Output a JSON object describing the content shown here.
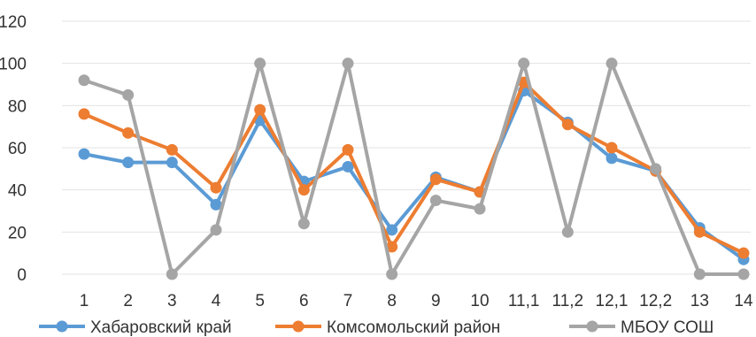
{
  "chart_data": {
    "type": "line",
    "title": "",
    "xlabel": "",
    "ylabel": "",
    "ylim": [
      0,
      120
    ],
    "yticks": [
      0,
      20,
      40,
      60,
      80,
      100,
      120
    ],
    "categories": [
      "1",
      "2",
      "3",
      "4",
      "5",
      "6",
      "7",
      "8",
      "9",
      "10",
      "11,1",
      "11,2",
      "12,1",
      "12,2",
      "13",
      "14"
    ],
    "grid": true,
    "legend": "bottom",
    "series": [
      {
        "name": "Хабаровский край",
        "color": "#5b9bd5",
        "values": [
          57,
          53,
          53,
          33,
          73,
          44,
          51,
          21,
          46,
          39,
          87,
          72,
          55,
          49,
          22,
          7
        ]
      },
      {
        "name": "Комсомольский район",
        "color": "#ed7d31",
        "values": [
          76,
          67,
          59,
          41,
          78,
          40,
          59,
          13,
          45,
          39,
          91,
          71,
          60,
          49,
          20,
          10
        ]
      },
      {
        "name": "МБОУ СОШ",
        "color": "#a5a5a5",
        "values": [
          92,
          85,
          0,
          21,
          100,
          24,
          100,
          0,
          35,
          31,
          100,
          20,
          100,
          50,
          0,
          0
        ]
      }
    ]
  }
}
